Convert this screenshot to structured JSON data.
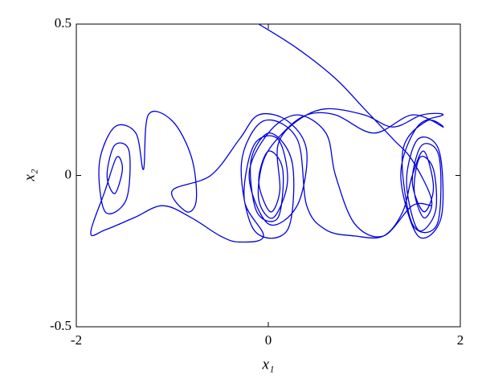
{
  "chart_data": {
    "type": "line",
    "xlabel": "x₁",
    "ylabel": "x₂",
    "xlim": [
      -2,
      2
    ],
    "ylim": [
      -0.5,
      0.5
    ],
    "xticks": [
      -2,
      0,
      2
    ],
    "yticks": [
      -0.5,
      0,
      0.5
    ],
    "grid": false,
    "series": [
      {
        "color": "#0000e0",
        "x": [
          -0.1,
          0.3,
          0.7,
          1.0,
          1.3,
          1.5,
          1.7,
          1.62,
          1.52,
          1.58,
          1.72,
          1.74,
          1.56,
          1.44,
          1.56,
          1.78,
          1.8,
          1.56,
          1.38,
          1.55,
          1.82,
          1.6,
          1.3,
          1.0,
          0.6,
          0.3,
          0.1,
          0.12,
          0.02,
          -0.1,
          0.0,
          0.15,
          0.1,
          -0.12,
          -0.18,
          0.02,
          0.25,
          0.2,
          -0.15,
          -0.28,
          -0.05,
          0.3,
          0.4,
          0.6,
          0.9,
          1.2,
          1.4,
          1.5,
          1.62,
          1.72,
          1.62,
          1.5,
          1.6,
          1.78,
          1.76,
          1.5,
          1.4,
          1.65,
          1.82,
          1.5,
          1.1,
          0.7,
          0.4,
          0.15,
          -0.05,
          -0.1,
          0.05,
          0.2,
          0.1,
          -0.15,
          -0.25,
          -0.05,
          -0.3,
          -0.5,
          -0.8,
          -1.1,
          -1.4,
          -1.7,
          -1.85,
          -1.7,
          -1.58,
          -1.52,
          -1.6,
          -1.68,
          -1.6,
          -1.45,
          -1.48,
          -1.7,
          -1.76,
          -1.6,
          -1.38,
          -1.3,
          -1.25,
          -1.0,
          -0.8,
          -0.75,
          -0.85,
          -1.0,
          -0.6,
          -0.3,
          -0.1,
          0.2,
          0.4,
          0.3,
          0.0,
          -0.2,
          0.0,
          0.3,
          0.6,
          0.7,
          0.9,
          1.2,
          1.5,
          1.7
        ],
        "values": [
          0.5,
          0.42,
          0.32,
          0.22,
          0.12,
          0.05,
          -0.08,
          -0.14,
          -0.05,
          0.06,
          0.02,
          -0.12,
          -0.18,
          -0.02,
          0.12,
          0.08,
          -0.14,
          -0.2,
          0.0,
          0.16,
          0.2,
          0.2,
          0.16,
          0.2,
          0.22,
          0.18,
          0.1,
          -0.05,
          -0.12,
          -0.02,
          0.08,
          0.02,
          -0.14,
          -0.12,
          0.05,
          0.14,
          0.04,
          -0.18,
          -0.18,
          0.04,
          0.18,
          0.12,
          -0.1,
          -0.18,
          -0.2,
          -0.2,
          -0.12,
          0.0,
          0.08,
          -0.04,
          -0.12,
          -0.02,
          0.1,
          0.06,
          -0.16,
          -0.16,
          0.08,
          0.18,
          0.16,
          0.2,
          0.14,
          0.2,
          0.2,
          0.14,
          0.05,
          -0.08,
          -0.14,
          -0.02,
          0.12,
          0.1,
          -0.08,
          -0.2,
          -0.22,
          -0.2,
          -0.14,
          -0.1,
          -0.14,
          -0.18,
          -0.19,
          -0.05,
          0.06,
          0.02,
          -0.06,
          0.0,
          0.1,
          0.08,
          -0.08,
          -0.12,
          0.04,
          0.16,
          0.14,
          0.02,
          0.2,
          0.18,
          0.06,
          -0.08,
          -0.12,
          -0.05,
          0.0,
          0.12,
          0.2,
          0.18,
          0.08,
          -0.1,
          -0.16,
          0.0,
          0.14,
          0.2,
          0.14,
          0.0,
          -0.16,
          -0.2,
          -0.1,
          -0.1
        ]
      }
    ]
  }
}
